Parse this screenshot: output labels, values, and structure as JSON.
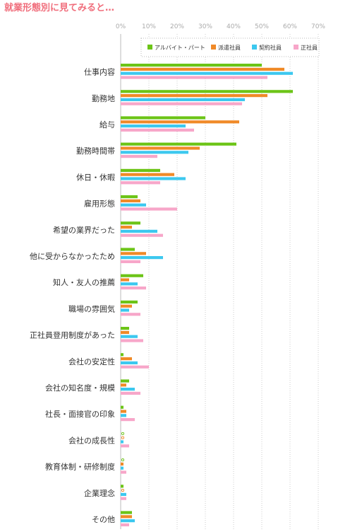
{
  "title": "就業形態別に見てみると…",
  "chart_data": {
    "type": "bar",
    "orientation": "horizontal",
    "x_ticks": [
      "0%",
      "10%",
      "20%",
      "30%",
      "40%",
      "50%",
      "60%",
      "70%"
    ],
    "xlim": [
      0,
      70
    ],
    "grid": true,
    "legend_position": "top-right",
    "categories": [
      "仕事内容",
      "勤務地",
      "給与",
      "勤務時間帯",
      "休日・休暇",
      "雇用形態",
      "希望の業界だった",
      "他に受からなかったため",
      "知人・友人の推薦",
      "職場の雰囲気",
      "正社員登用制度があった",
      "会社の安定性",
      "会社の知名度・規模",
      "社長・面接官の印象",
      "会社の成長性",
      "教育体制・研修制度",
      "企業理念",
      "その他"
    ],
    "series": [
      {
        "name": "アルバイト・パート",
        "color": "#6cc417",
        "values": [
          50,
          61,
          30,
          41,
          14,
          6,
          7,
          5,
          8,
          6,
          3,
          1,
          3,
          1,
          0.3,
          0.3,
          1,
          4
        ]
      },
      {
        "name": "派遣社員",
        "color": "#f08a28",
        "values": [
          58,
          52,
          42,
          28,
          19,
          7,
          4,
          9,
          3,
          4,
          3,
          4,
          2,
          2,
          0.3,
          1,
          0.3,
          4
        ]
      },
      {
        "name": "契約社員",
        "color": "#3cc8ef",
        "values": [
          61,
          44,
          23,
          24,
          23,
          9,
          13,
          15,
          6,
          3,
          6,
          6,
          5,
          2,
          1,
          1,
          2,
          5
        ]
      },
      {
        "name": "正社員",
        "color": "#f7a6c9",
        "values": [
          52,
          43,
          26,
          13,
          14,
          20,
          15,
          7,
          9,
          7,
          8,
          10,
          7,
          5,
          3,
          2,
          2,
          3
        ]
      }
    ]
  }
}
